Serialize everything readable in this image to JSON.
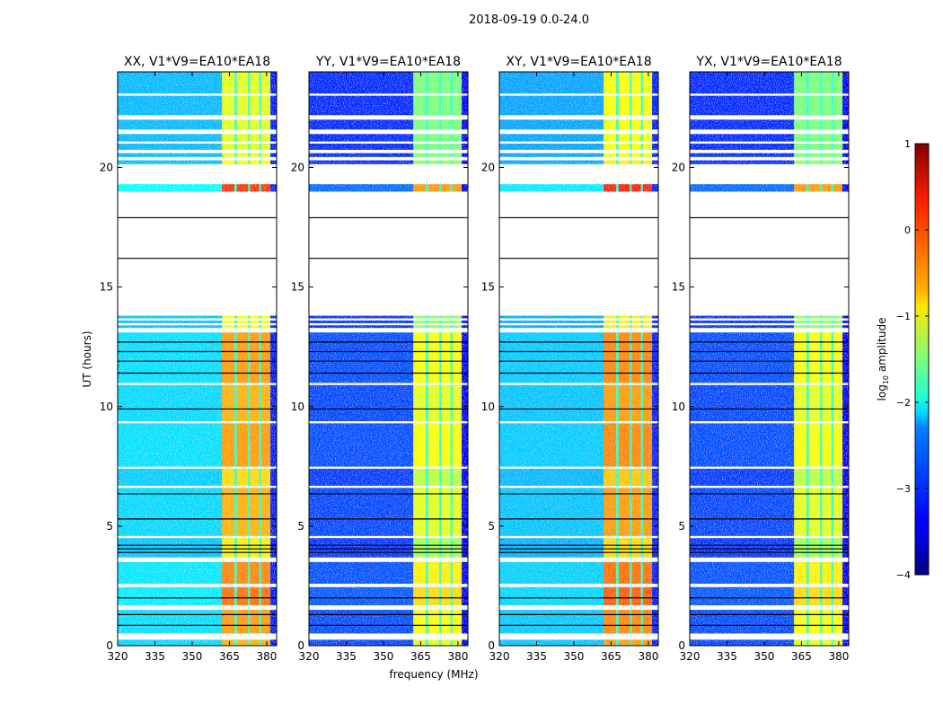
{
  "chart_data": {
    "type": "heatmap",
    "title": "2018-09-19 0.0-24.0",
    "xlabel": "frequency (MHz)",
    "ylabel": "UT (hours)",
    "xlim": [
      320,
      384
    ],
    "ylim": [
      0,
      24
    ],
    "xticks": [
      320,
      335,
      350,
      365,
      380
    ],
    "yticks": [
      0,
      5,
      10,
      15,
      20
    ],
    "colorbar": {
      "label_main": "log",
      "label_sub": "10",
      "label_rest": " amplitude",
      "range": [
        -4,
        1
      ],
      "ticks": [
        -4,
        -3,
        -2,
        -1,
        0,
        1
      ],
      "tick_labels": [
        "−4",
        "−3",
        "−2",
        "−1",
        "0",
        "1"
      ],
      "colormap": "jet"
    },
    "freq_segments": [
      {
        "f0": 320,
        "f1": 362,
        "kind": "bg"
      },
      {
        "f0": 362,
        "f1": 367,
        "kind": "band"
      },
      {
        "f0": 367,
        "f1": 368,
        "kind": "sep"
      },
      {
        "f0": 368,
        "f1": 372.5,
        "kind": "band"
      },
      {
        "f0": 372.5,
        "f1": 373.3,
        "kind": "sep"
      },
      {
        "f0": 373.3,
        "f1": 377,
        "kind": "band"
      },
      {
        "f0": 377,
        "f1": 377.8,
        "kind": "sep"
      },
      {
        "f0": 377.8,
        "f1": 381.5,
        "kind": "band"
      },
      {
        "f0": 381.5,
        "f1": 384,
        "kind": "edge"
      }
    ],
    "time_blocks": [
      {
        "t0": 0.0,
        "t1": 0.25,
        "boost": 0.0
      },
      {
        "t0": 0.52,
        "t1": 1.5,
        "boost": 0.1
      },
      {
        "t0": 1.7,
        "t1": 2.45,
        "boost": 0.3
      },
      {
        "t0": 2.6,
        "t1": 3.5,
        "boost": 0.2
      },
      {
        "t0": 3.7,
        "t1": 4.5,
        "boost": -0.3
      },
      {
        "t0": 4.6,
        "t1": 6.6,
        "boost": 0.0
      },
      {
        "t0": 6.7,
        "t1": 7.4,
        "boost": -0.2
      },
      {
        "t0": 7.5,
        "t1": 9.3,
        "boost": 0.1
      },
      {
        "t0": 9.4,
        "t1": 10.9,
        "boost": 0.0
      },
      {
        "t0": 11.0,
        "t1": 13.1,
        "boost": 0.1
      },
      {
        "t0": 13.3,
        "t1": 13.4,
        "boost": -0.4
      },
      {
        "t0": 13.5,
        "t1": 13.6,
        "boost": -0.4
      },
      {
        "t0": 13.7,
        "t1": 13.8,
        "boost": -0.4
      },
      {
        "t0": 19.0,
        "t1": 19.3,
        "boost": 0.6
      },
      {
        "t0": 20.15,
        "t1": 20.3,
        "boost": -0.4
      },
      {
        "t0": 20.45,
        "t1": 20.6,
        "boost": -0.5
      },
      {
        "t0": 20.75,
        "t1": 21.0,
        "boost": -0.5
      },
      {
        "t0": 21.1,
        "t1": 21.4,
        "boost": -0.5
      },
      {
        "t0": 21.6,
        "t1": 22.0,
        "boost": -0.5
      },
      {
        "t0": 22.2,
        "t1": 23.0,
        "boost": -0.5
      },
      {
        "t0": 23.1,
        "t1": 24.0,
        "boost": -0.5
      }
    ],
    "dark_lines": [
      0.85,
      1.3,
      2.0,
      3.9,
      4.05,
      4.2,
      5.3,
      6.35,
      9.9,
      11.4,
      11.9,
      12.3,
      12.7,
      16.2,
      17.9
    ],
    "panels": [
      {
        "title": "XX, V1*V9=EA10*EA18",
        "bg": -2.3,
        "band": -0.5,
        "edge": -3.2
      },
      {
        "title": "YY, V1*V9=EA10*EA18",
        "bg": -3.0,
        "band": -1.0,
        "edge": -3.4
      },
      {
        "title": "XY, V1*V9=EA10*EA18",
        "bg": -2.4,
        "band": -0.4,
        "edge": -3.2
      },
      {
        "title": "YX, V1*V9=EA10*EA18",
        "bg": -3.0,
        "band": -1.0,
        "edge": -3.4
      }
    ]
  }
}
